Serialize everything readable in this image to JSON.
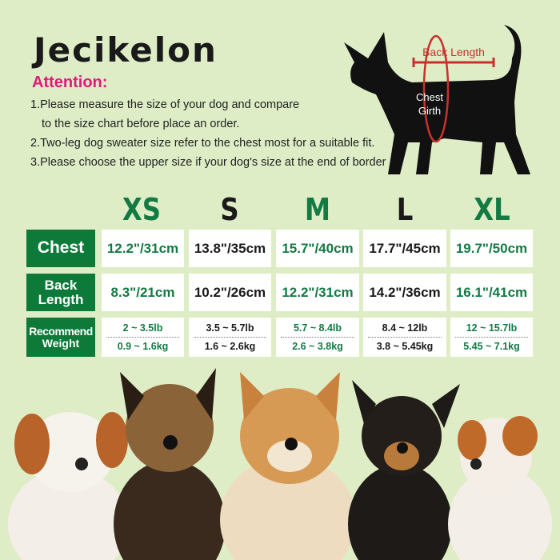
{
  "brand": "Jecikelon",
  "attention": {
    "title": "Attention:",
    "lines": [
      "1.Please measure the size of your dog and compare",
      "to the size chart before place an order.",
      "2.Two-leg dog sweater size refer to the chest most for a suitable fit.",
      "3.Please choose the upper size if your dog's size at the end of border"
    ]
  },
  "diagram": {
    "back_length": "Back Length",
    "chest_girth_1": "Chest",
    "chest_girth_2": "Girth"
  },
  "sizes": [
    "XS",
    "S",
    "M",
    "L",
    "XL"
  ],
  "rows": {
    "chest": {
      "label": "Chest",
      "values": [
        "12.2\"/31cm",
        "13.8\"/35cm",
        "15.7\"/40cm",
        "17.7\"/45cm",
        "19.7\"/50cm"
      ]
    },
    "back": {
      "label1": "Back",
      "label2": "Length",
      "values": [
        "8.3\"/21cm",
        "10.2\"/26cm",
        "12.2\"/31cm",
        "14.2\"/36cm",
        "16.1\"/41cm"
      ]
    },
    "weight": {
      "label1": "Recommend",
      "label2": "Weight",
      "lb": [
        "2 ~ 3.5lb",
        "3.5 ~ 5.7lb",
        "5.7 ~ 8.4lb",
        "8.4 ~ 12lb",
        "12 ~ 15.7lb"
      ],
      "kg": [
        "0.9 ~ 1.6kg",
        "1.6 ~ 2.6kg",
        "2.6 ~ 3.8kg",
        "3.8 ~ 5.45kg",
        "5.45 ~ 7.1kg"
      ]
    }
  },
  "colors": {
    "background": "#deedc6",
    "green": "#0d7a3a",
    "accent": "#e0197d",
    "measure": "#c9302c"
  }
}
